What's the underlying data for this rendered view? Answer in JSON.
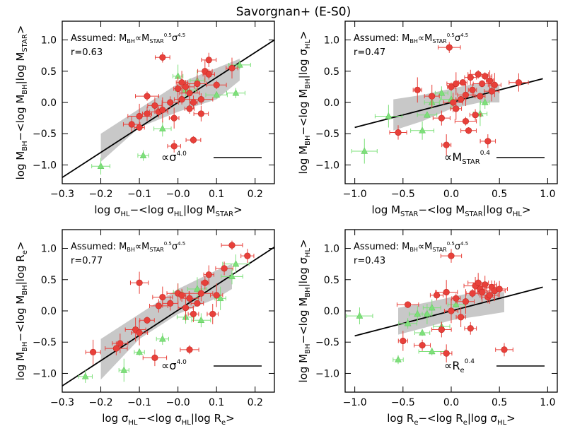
{
  "figure_title": "Savorgnan+ (E-S0)",
  "colors": {
    "red": "#e8403a",
    "green": "#7de07a",
    "band": "#c8c8c8",
    "line": "#000000"
  },
  "chart_data": [
    {
      "type": "scatter",
      "id": "p1",
      "ylabel_main": "log M",
      "ylabel_sub1": "BH",
      "ylabel_mid": "−<log M",
      "ylabel_sub2": "BH",
      "ylabel_end": "|log M",
      "ylabel_sub3": "STAR",
      "ylabel_close": ">",
      "xlabel_main": "log σ",
      "xlabel_sub1": "HL",
      "xlabel_mid": "−<log σ",
      "xlabel_sub2": "HL",
      "xlabel_end": "|log M",
      "xlabel_sub3": "STAR",
      "xlabel_close": ">",
      "xlim": [
        -0.3,
        0.25
      ],
      "ylim": [
        -1.3,
        1.3
      ],
      "xticks": [
        -0.3,
        -0.2,
        -0.1,
        0.0,
        0.1,
        0.2
      ],
      "xticklabels": [
        "−0.3",
        "−0.2",
        "−0.1",
        "−0.0",
        "0.1",
        "0.2"
      ],
      "yticks": [
        -1.0,
        -0.5,
        0.0,
        0.5,
        1.0
      ],
      "yticklabels": [
        "−1.0",
        "−0.5",
        "0.0",
        "0.5",
        "1.0"
      ],
      "assumed_text": "Assumed:",
      "r_label": "r=0.63",
      "slope_label": "∝σ",
      "slope_exp": "4.0",
      "fit_line": [
        [
          -0.3,
          -1.2
        ],
        [
          0.25,
          1.0
        ]
      ],
      "band_upper": [
        [
          -0.2,
          -0.5
        ],
        [
          -0.1,
          -0.1
        ],
        [
          0.0,
          0.3
        ],
        [
          0.1,
          0.55
        ],
        [
          0.16,
          0.7
        ]
      ],
      "band_lower": [
        [
          -0.2,
          -0.95
        ],
        [
          -0.1,
          -0.4
        ],
        [
          0.0,
          -0.15
        ],
        [
          0.1,
          0.05
        ],
        [
          0.16,
          0.35
        ]
      ],
      "red_points": [
        [
          -0.12,
          -0.35
        ],
        [
          -0.1,
          -0.4
        ],
        [
          -0.1,
          -0.22
        ],
        [
          -0.08,
          -0.18
        ],
        [
          -0.08,
          0.1
        ],
        [
          -0.06,
          -0.05
        ],
        [
          -0.05,
          -0.15
        ],
        [
          -0.04,
          -0.12
        ],
        [
          -0.04,
          0.72
        ],
        [
          -0.02,
          0.0
        ],
        [
          -0.01,
          -0.25
        ],
        [
          -0.01,
          -0.7
        ],
        [
          0.0,
          0.22
        ],
        [
          0.01,
          0.32
        ],
        [
          0.01,
          0.05
        ],
        [
          0.02,
          0.25
        ],
        [
          0.03,
          0.15
        ],
        [
          0.03,
          -0.1
        ],
        [
          0.04,
          -0.6
        ],
        [
          0.04,
          0.0
        ],
        [
          0.05,
          0.3
        ],
        [
          0.06,
          0.05
        ],
        [
          0.06,
          -0.18
        ],
        [
          0.07,
          0.5
        ],
        [
          0.08,
          0.68
        ],
        [
          0.08,
          0.45
        ],
        [
          0.1,
          0.28
        ],
        [
          0.14,
          0.55
        ]
      ],
      "green_points": [
        [
          -0.2,
          -1.02
        ],
        [
          -0.09,
          -0.85
        ],
        [
          -0.04,
          -0.42
        ],
        [
          0.0,
          0.42
        ],
        [
          0.02,
          0.2
        ],
        [
          0.05,
          0.35
        ],
        [
          0.1,
          0.12
        ],
        [
          0.15,
          0.15
        ],
        [
          0.16,
          0.6
        ]
      ]
    },
    {
      "type": "scatter",
      "id": "p2",
      "ylabel_main": "log M",
      "ylabel_sub1": "BH",
      "ylabel_mid": "−<log M",
      "ylabel_sub2": "BH",
      "ylabel_end": "|log σ",
      "ylabel_sub3": "HL",
      "ylabel_close": ">",
      "xlabel_main": "log M",
      "xlabel_sub1": "STAR",
      "xlabel_mid": "−<log M",
      "xlabel_sub2": "STAR",
      "xlabel_end": "|log σ",
      "xlabel_sub3": "HL",
      "xlabel_close": ">",
      "xlim": [
        -1.1,
        1.1
      ],
      "ylim": [
        -1.3,
        1.3
      ],
      "xticks": [
        -1.0,
        -0.5,
        0.0,
        0.5,
        1.0
      ],
      "xticklabels": [
        "−1.0",
        "−0.5",
        "0.0",
        "0.5",
        "1.0"
      ],
      "yticks": [
        -1.0,
        -0.5,
        0.0,
        0.5,
        1.0
      ],
      "yticklabels": [
        "−1.0",
        "−0.5",
        "0.0",
        "0.5",
        "1.0"
      ],
      "assumed_text": "Assumed:",
      "r_label": "r=0.47",
      "slope_label": "∝M",
      "slope_sub": "STAR",
      "slope_exp": "0.4",
      "fit_line": [
        [
          -1.0,
          -0.4
        ],
        [
          0.95,
          0.38
        ]
      ],
      "band_upper": [
        [
          -0.6,
          0.05
        ],
        [
          -0.3,
          0.12
        ],
        [
          0.0,
          0.22
        ],
        [
          0.3,
          0.32
        ],
        [
          0.5,
          0.28
        ]
      ],
      "band_lower": [
        [
          -0.6,
          -0.45
        ],
        [
          -0.3,
          -0.3
        ],
        [
          0.0,
          -0.1
        ],
        [
          0.3,
          0.0
        ],
        [
          0.5,
          0.0
        ]
      ],
      "red_points": [
        [
          -0.55,
          -0.48
        ],
        [
          -0.35,
          0.2
        ],
        [
          -0.2,
          0.1
        ],
        [
          -0.1,
          -0.25
        ],
        [
          -0.05,
          -0.68
        ],
        [
          -0.02,
          0.88
        ],
        [
          0.0,
          0.25
        ],
        [
          0.02,
          0.0
        ],
        [
          0.05,
          0.3
        ],
        [
          0.05,
          -0.1
        ],
        [
          0.1,
          0.05
        ],
        [
          0.12,
          0.32
        ],
        [
          0.15,
          0.12
        ],
        [
          0.15,
          -0.3
        ],
        [
          0.18,
          -0.45
        ],
        [
          0.2,
          0.4
        ],
        [
          0.22,
          0.2
        ],
        [
          0.25,
          -0.2
        ],
        [
          0.28,
          0.45
        ],
        [
          0.3,
          0.1
        ],
        [
          0.32,
          0.3
        ],
        [
          0.35,
          0.42
        ],
        [
          0.38,
          -0.62
        ],
        [
          0.4,
          0.35
        ],
        [
          0.42,
          0.18
        ],
        [
          0.45,
          0.28
        ],
        [
          0.7,
          0.32
        ]
      ],
      "green_points": [
        [
          -0.9,
          -0.78
        ],
        [
          -0.65,
          -0.22
        ],
        [
          -0.3,
          -0.45
        ],
        [
          -0.25,
          -0.2
        ],
        [
          -0.2,
          0.0
        ],
        [
          -0.1,
          0.15
        ],
        [
          0.0,
          0.05
        ],
        [
          0.3,
          -0.18
        ],
        [
          0.35,
          0.0
        ]
      ]
    },
    {
      "type": "scatter",
      "id": "p3",
      "ylabel_main": "log M",
      "ylabel_sub1": "BH",
      "ylabel_mid": "−<log M",
      "ylabel_sub2": "BH",
      "ylabel_end": "|log R",
      "ylabel_sub3": "e",
      "ylabel_close": ">",
      "xlabel_main": "log σ",
      "xlabel_sub1": "HL",
      "xlabel_mid": "−<log σ",
      "xlabel_sub2": "HL",
      "xlabel_end": "|log R",
      "xlabel_sub3": "e",
      "xlabel_close": ">",
      "xlim": [
        -0.3,
        0.25
      ],
      "ylim": [
        -1.3,
        1.3
      ],
      "xticks": [
        -0.3,
        -0.2,
        -0.1,
        0.0,
        0.1,
        0.2
      ],
      "xticklabels": [
        "−0.3",
        "−0.2",
        "−0.1",
        "−0.0",
        "0.1",
        "0.2"
      ],
      "yticks": [
        -1.0,
        -0.5,
        0.0,
        0.5,
        1.0
      ],
      "yticklabels": [
        "−1.0",
        "−0.5",
        "0.0",
        "0.5",
        "1.0"
      ],
      "assumed_text": "Assumed:",
      "r_label": "r=0.77",
      "slope_label": "∝σ",
      "slope_exp": "4.0",
      "fit_line": [
        [
          -0.3,
          -1.2
        ],
        [
          0.25,
          1.02
        ]
      ],
      "band_upper": [
        [
          -0.2,
          -0.45
        ],
        [
          -0.1,
          -0.05
        ],
        [
          0.0,
          0.35
        ],
        [
          0.1,
          0.65
        ],
        [
          0.14,
          0.75
        ]
      ],
      "band_lower": [
        [
          -0.2,
          -1.1
        ],
        [
          -0.1,
          -0.45
        ],
        [
          0.0,
          -0.05
        ],
        [
          0.1,
          0.2
        ],
        [
          0.14,
          0.35
        ]
      ],
      "red_points": [
        [
          -0.22,
          -0.66
        ],
        [
          -0.16,
          -0.6
        ],
        [
          -0.15,
          -0.52
        ],
        [
          -0.11,
          -0.3
        ],
        [
          -0.1,
          -0.35
        ],
        [
          -0.1,
          0.45
        ],
        [
          -0.08,
          -0.15
        ],
        [
          -0.06,
          -0.75
        ],
        [
          -0.05,
          0.08
        ],
        [
          -0.04,
          0.22
        ],
        [
          -0.02,
          0.12
        ],
        [
          0.0,
          0.28
        ],
        [
          0.01,
          0.25
        ],
        [
          0.02,
          0.05
        ],
        [
          0.03,
          0.2
        ],
        [
          0.03,
          -0.62
        ],
        [
          0.04,
          -0.05
        ],
        [
          0.05,
          0.12
        ],
        [
          0.06,
          0.28
        ],
        [
          0.07,
          0.45
        ],
        [
          0.08,
          0.58
        ],
        [
          0.09,
          -0.05
        ],
        [
          0.1,
          0.25
        ],
        [
          0.12,
          0.68
        ],
        [
          0.14,
          1.05
        ],
        [
          0.18,
          0.88
        ]
      ],
      "green_points": [
        [
          -0.24,
          -1.05
        ],
        [
          -0.14,
          -0.95
        ],
        [
          -0.1,
          -0.66
        ],
        [
          -0.04,
          -0.45
        ],
        [
          0.0,
          0.3
        ],
        [
          0.02,
          -0.1
        ],
        [
          0.05,
          0.35
        ],
        [
          0.06,
          -0.15
        ],
        [
          0.11,
          0.2
        ],
        [
          0.14,
          0.55
        ],
        [
          0.15,
          0.75
        ]
      ]
    },
    {
      "type": "scatter",
      "id": "p4",
      "ylabel_main": "log M",
      "ylabel_sub1": "BH",
      "ylabel_mid": "−<log M",
      "ylabel_sub2": "BH",
      "ylabel_end": "|log σ",
      "ylabel_sub3": "HL",
      "ylabel_close": ">",
      "xlabel_main": "log R",
      "xlabel_sub1": "e",
      "xlabel_mid": "−<log R",
      "xlabel_sub2": "e",
      "xlabel_end": "|log σ",
      "xlabel_sub3": "HL",
      "xlabel_close": ">",
      "xlim": [
        -1.1,
        1.1
      ],
      "ylim": [
        -1.3,
        1.3
      ],
      "xticks": [
        -1.0,
        -0.5,
        0.0,
        0.5,
        1.0
      ],
      "xticklabels": [
        "−1.0",
        "−0.5",
        "0.0",
        "0.5",
        "1.0"
      ],
      "yticks": [
        -1.0,
        -0.5,
        0.0,
        0.5,
        1.0
      ],
      "yticklabels": [
        "−1.0",
        "−0.5",
        "0.0",
        "0.5",
        "1.0"
      ],
      "assumed_text": "Assumed:",
      "r_label": "r=0.43",
      "slope_label": "∝R",
      "slope_sub": "e",
      "slope_exp": "0.4",
      "fit_line": [
        [
          -1.0,
          -0.4
        ],
        [
          0.95,
          0.38
        ]
      ],
      "band_upper": [
        [
          -0.55,
          0.05
        ],
        [
          -0.3,
          0.12
        ],
        [
          0.0,
          0.22
        ],
        [
          0.3,
          0.32
        ],
        [
          0.55,
          0.3
        ]
      ],
      "band_lower": [
        [
          -0.55,
          -0.38
        ],
        [
          -0.3,
          -0.28
        ],
        [
          0.0,
          -0.15
        ],
        [
          0.3,
          -0.08
        ],
        [
          0.55,
          -0.02
        ]
      ],
      "red_points": [
        [
          -0.5,
          -0.48
        ],
        [
          -0.45,
          0.1
        ],
        [
          -0.3,
          -0.55
        ],
        [
          -0.15,
          0.25
        ],
        [
          -0.1,
          -0.3
        ],
        [
          -0.05,
          -0.68
        ],
        [
          -0.05,
          0.3
        ],
        [
          0.0,
          0.0
        ],
        [
          0.0,
          0.88
        ],
        [
          0.05,
          0.2
        ],
        [
          0.1,
          -0.1
        ],
        [
          0.15,
          0.15
        ],
        [
          0.2,
          -0.28
        ],
        [
          0.22,
          0.28
        ],
        [
          0.25,
          0.4
        ],
        [
          0.28,
          0.45
        ],
        [
          0.3,
          0.35
        ],
        [
          0.32,
          0.3
        ],
        [
          0.35,
          0.42
        ],
        [
          0.38,
          0.22
        ],
        [
          0.4,
          0.25
        ],
        [
          0.42,
          0.38
        ],
        [
          0.45,
          0.32
        ],
        [
          0.5,
          0.35
        ],
        [
          0.55,
          -0.62
        ]
      ],
      "green_points": [
        [
          -0.95,
          -0.08
        ],
        [
          -0.55,
          -0.78
        ],
        [
          -0.45,
          -0.2
        ],
        [
          -0.35,
          -0.05
        ],
        [
          -0.3,
          -0.35
        ],
        [
          -0.25,
          -0.05
        ],
        [
          -0.2,
          0.05
        ],
        [
          -0.2,
          -0.65
        ],
        [
          -0.1,
          -0.25
        ],
        [
          0.05,
          0.1
        ]
      ]
    }
  ]
}
